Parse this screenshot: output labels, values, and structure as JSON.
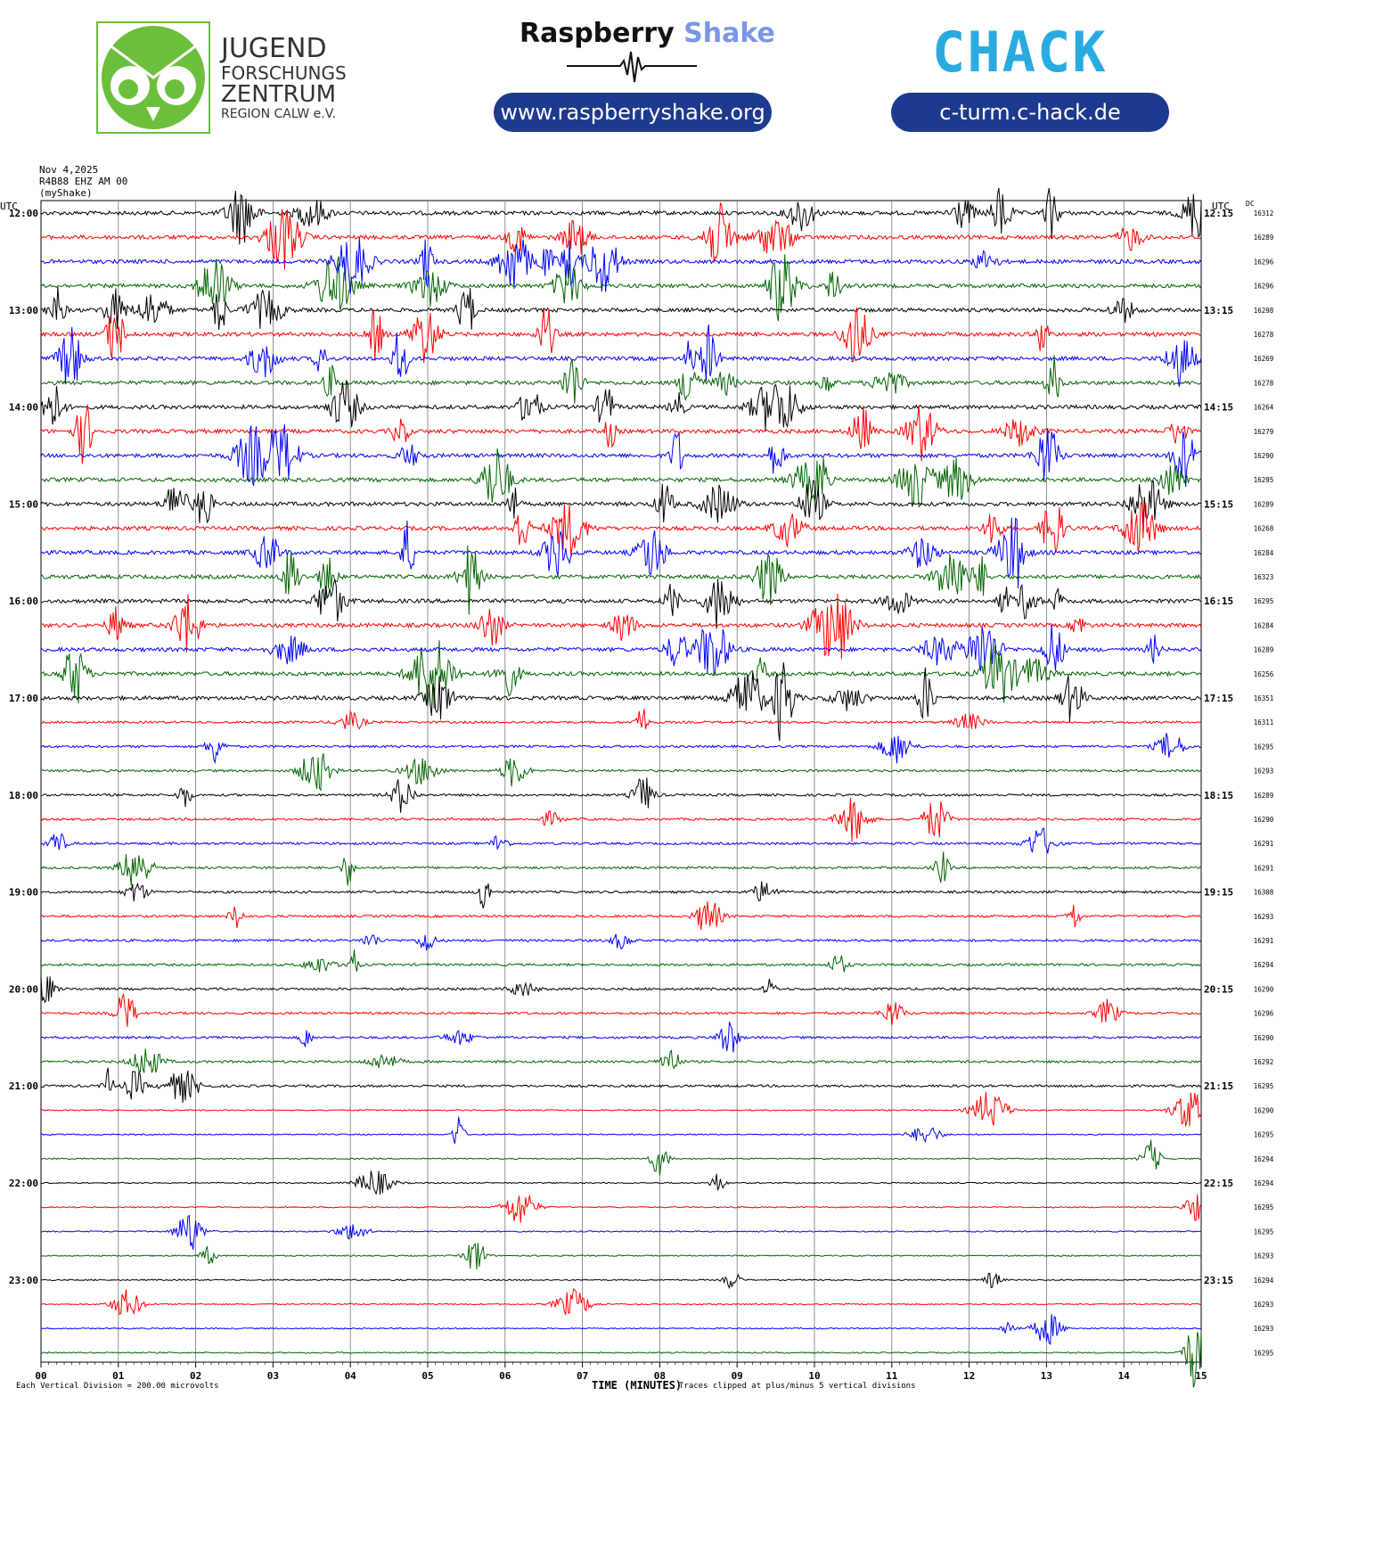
{
  "header": {
    "jfz": {
      "line1": "JUGEND",
      "line2": "FORSCHUNGS",
      "line3": "ZENTRUM",
      "line4": "REGION CALW e.V."
    },
    "rs": {
      "word1": "Raspberry",
      "word2": "Shake",
      "url": "www.raspberryshake.org"
    },
    "chack": {
      "logo": "CHACK",
      "url": "c-turm.c-hack.de"
    }
  },
  "colors": {
    "pill": "#1e3a8f",
    "jfz_green": "#6cbf3c",
    "rs_blue": "#7b96e6",
    "chack_green": "#7ac943",
    "chack_cyan": "#29abe2"
  },
  "meta": {
    "date": "Nov 4,2025",
    "station": "R4B88 EHZ AM 00",
    "source": "(myShake)",
    "utc_left": "UTC",
    "utc_right": "UTC",
    "dc": "DC",
    "scale_note": "Each Vertical Division =  200.00 microvolts",
    "clip_note": "Traces clipped at plus/minus 5 vertical divisions",
    "xlabel": "TIME (MINUTES)"
  },
  "chart_data": {
    "type": "line",
    "xlabel": "TIME (MINUTES)",
    "x_ticks": [
      "00",
      "01",
      "02",
      "03",
      "04",
      "05",
      "06",
      "07",
      "08",
      "09",
      "10",
      "11",
      "12",
      "13",
      "14",
      "15"
    ],
    "xlim": [
      0,
      15
    ],
    "series_colors": [
      "#000000",
      "#ff0000",
      "#0000ff",
      "#006400"
    ],
    "hour_labels_left": [
      "12:00",
      "13:00",
      "14:00",
      "15:00",
      "16:00",
      "17:00",
      "18:00",
      "19:00",
      "20:00",
      "21:00",
      "22:00",
      "23:00"
    ],
    "hour_labels_right": [
      "12:15",
      "13:15",
      "14:15",
      "15:15",
      "16:15",
      "17:15",
      "18:15",
      "19:15",
      "20:15",
      "21:15",
      "22:15",
      "23:15"
    ],
    "dc_offsets": [
      "16312",
      "16289",
      "16296",
      "16296",
      "16298",
      "16278",
      "16269",
      "16278",
      "16264",
      "16279",
      "16290",
      "16295",
      "16289",
      "16268",
      "16284",
      "16323",
      "16295",
      "16284",
      "16289",
      "16256",
      "16351",
      "16311",
      "16295",
      "16293",
      "16289",
      "16290",
      "16291",
      "16291",
      "16308",
      "16293",
      "16291",
      "16294",
      "16290",
      "16296",
      "16290",
      "16292",
      "16295",
      "16290",
      "16295",
      "16294",
      "16294",
      "16295",
      "16295",
      "16293",
      "16294",
      "16293",
      "16293",
      "16295"
    ],
    "trace_activity": [
      3,
      3,
      3,
      3,
      3,
      3,
      3,
      3,
      3,
      3,
      3,
      3,
      3,
      3,
      3,
      3,
      3,
      3,
      3,
      3,
      3,
      2,
      2,
      2,
      2,
      2,
      2,
      2,
      2,
      2,
      2,
      2,
      2,
      2,
      2,
      2,
      2,
      1,
      1,
      1,
      1,
      1,
      1,
      1,
      1,
      1,
      1,
      1
    ]
  }
}
